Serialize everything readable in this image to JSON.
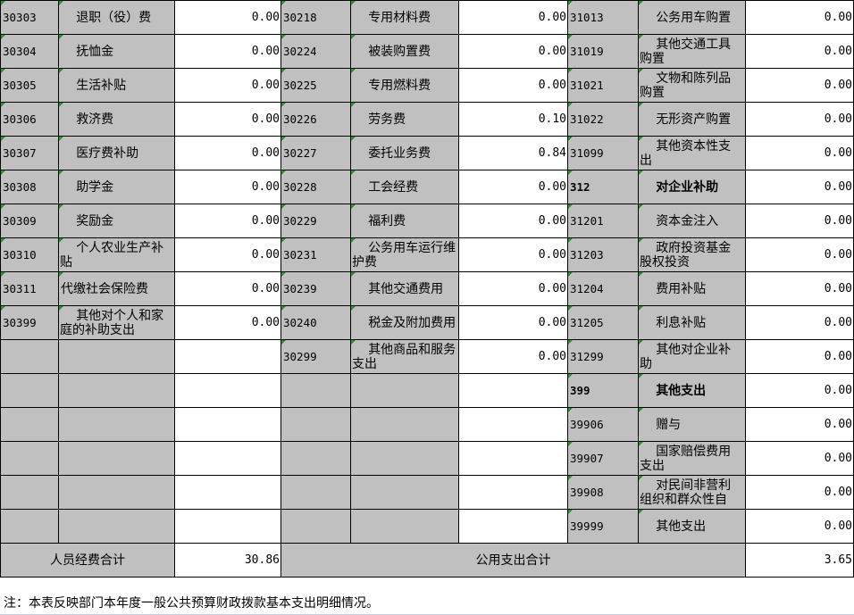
{
  "left": [
    {
      "code": "30303",
      "name": "退职（役）费",
      "value": "0.00"
    },
    {
      "code": "30304",
      "name": "抚恤金",
      "value": "0.00"
    },
    {
      "code": "30305",
      "name": "生活补贴",
      "value": "0.00"
    },
    {
      "code": "30306",
      "name": "救济费",
      "value": "0.00"
    },
    {
      "code": "30307",
      "name": "医疗费补助",
      "value": "0.00"
    },
    {
      "code": "30308",
      "name": "助学金",
      "value": "0.00"
    },
    {
      "code": "30309",
      "name": "奖励金",
      "value": "0.00"
    },
    {
      "code": "30310",
      "name": "个人农业生产补贴",
      "value": "0.00"
    },
    {
      "code": "30311",
      "name": "代缴社会保险费",
      "value": "0.00",
      "noindent": true
    },
    {
      "code": "30399",
      "name": "其他对个人和家庭的补助支出",
      "value": "0.00"
    }
  ],
  "middle": [
    {
      "code": "30218",
      "name": "专用材料费",
      "value": "0.00"
    },
    {
      "code": "30224",
      "name": "被装购置费",
      "value": "0.00"
    },
    {
      "code": "30225",
      "name": "专用燃料费",
      "value": "0.00"
    },
    {
      "code": "30226",
      "name": "劳务费",
      "value": "0.10"
    },
    {
      "code": "30227",
      "name": "委托业务费",
      "value": "0.84"
    },
    {
      "code": "30228",
      "name": "工会经费",
      "value": "0.00"
    },
    {
      "code": "30229",
      "name": "福利费",
      "value": "0.00"
    },
    {
      "code": "30231",
      "name": "公务用车运行维护费",
      "value": "0.00"
    },
    {
      "code": "30239",
      "name": "其他交通费用",
      "value": "0.00"
    },
    {
      "code": "30240",
      "name": "税金及附加费用",
      "value": "0.00"
    },
    {
      "code": "30299",
      "name": "其他商品和服务支出",
      "value": "0.00"
    }
  ],
  "right": [
    {
      "code": "31013",
      "name": "公务用车购置",
      "value": "0.00"
    },
    {
      "code": "31019",
      "name": "其他交通工具购置",
      "value": "0.00"
    },
    {
      "code": "31021",
      "name": "文物和陈列品购置",
      "value": "0.00"
    },
    {
      "code": "31022",
      "name": "无形资产购置",
      "value": "0.00"
    },
    {
      "code": "31099",
      "name": "其他资本性支出",
      "value": "0.00"
    },
    {
      "code": "312",
      "name": "对企业补助",
      "value": "0.00",
      "bold": true
    },
    {
      "code": "31201",
      "name": "资本金注入",
      "value": "0.00"
    },
    {
      "code": "31203",
      "name": "政府投资基金股权投资",
      "value": "0.00"
    },
    {
      "code": "31204",
      "name": "费用补贴",
      "value": "0.00"
    },
    {
      "code": "31205",
      "name": "利息补贴",
      "value": "0.00"
    },
    {
      "code": "31299",
      "name": "其他对企业补助",
      "value": "0.00"
    },
    {
      "code": "399",
      "name": "其他支出",
      "value": "0.00",
      "bold": true
    },
    {
      "code": "39906",
      "name": "赠与",
      "value": "0.00"
    },
    {
      "code": "39907",
      "name": "国家赔偿费用支出",
      "value": "0.00"
    },
    {
      "code": "39908",
      "name": "对民间非营利组织和群众性自",
      "value": "0.00"
    },
    {
      "code": "39999",
      "name": "其他支出",
      "value": "0.00"
    }
  ],
  "totals": {
    "personnel_label": "人员经费合计",
    "personnel_value": "30.86",
    "public_label": "公用支出合计",
    "public_value": "3.65"
  },
  "note": "注：本表反映部门本年度一般公共预算财政拨款基本支出明细情况。",
  "colors": {
    "cell_gray": "#c0c0c0",
    "marker_green": "#1a9a1a"
  }
}
